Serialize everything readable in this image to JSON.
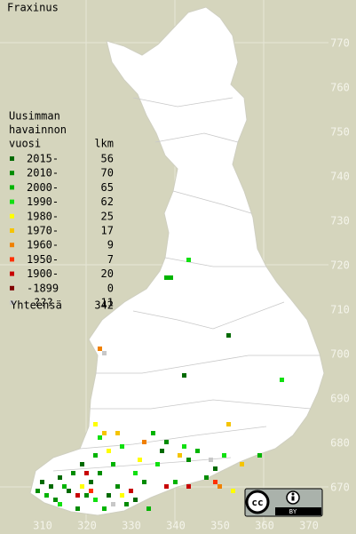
{
  "map": {
    "title": "Fraxinus",
    "x_labels": [
      310,
      320,
      330,
      340,
      350,
      360,
      370
    ],
    "y_labels": [
      770,
      760,
      750,
      740,
      730,
      720,
      710,
      700,
      690,
      680,
      670
    ],
    "legend": {
      "header": [
        "Uusimman",
        "havainnon",
        "vuosi"
      ],
      "count_header": "lkm",
      "rows": [
        {
          "label": "2015-",
          "count": 56,
          "color": "#006a00"
        },
        {
          "label": "2010-",
          "count": 70,
          "color": "#008c00"
        },
        {
          "label": "2000-",
          "count": 65,
          "color": "#00b400"
        },
        {
          "label": "1990-",
          "count": 62,
          "color": "#10e010"
        },
        {
          "label": "1980-",
          "count": 25,
          "color": "#ffff00"
        },
        {
          "label": "1970-",
          "count": 17,
          "color": "#f5c400"
        },
        {
          "label": "1960-",
          "count": 9,
          "color": "#f08000"
        },
        {
          "label": "1950-",
          "count": 7,
          "color": "#ff3000"
        },
        {
          "label": "1900-",
          "count": 20,
          "color": "#c80000"
        },
        {
          "label": "-1899",
          "count": 0,
          "color": "#800000"
        },
        {
          "label": "???",
          "count": 11,
          "color": "#c8c8c8"
        }
      ],
      "total_label": "Yhteensä",
      "total": 342
    },
    "license": {
      "cc": "cc",
      "by": "BY"
    }
  }
}
